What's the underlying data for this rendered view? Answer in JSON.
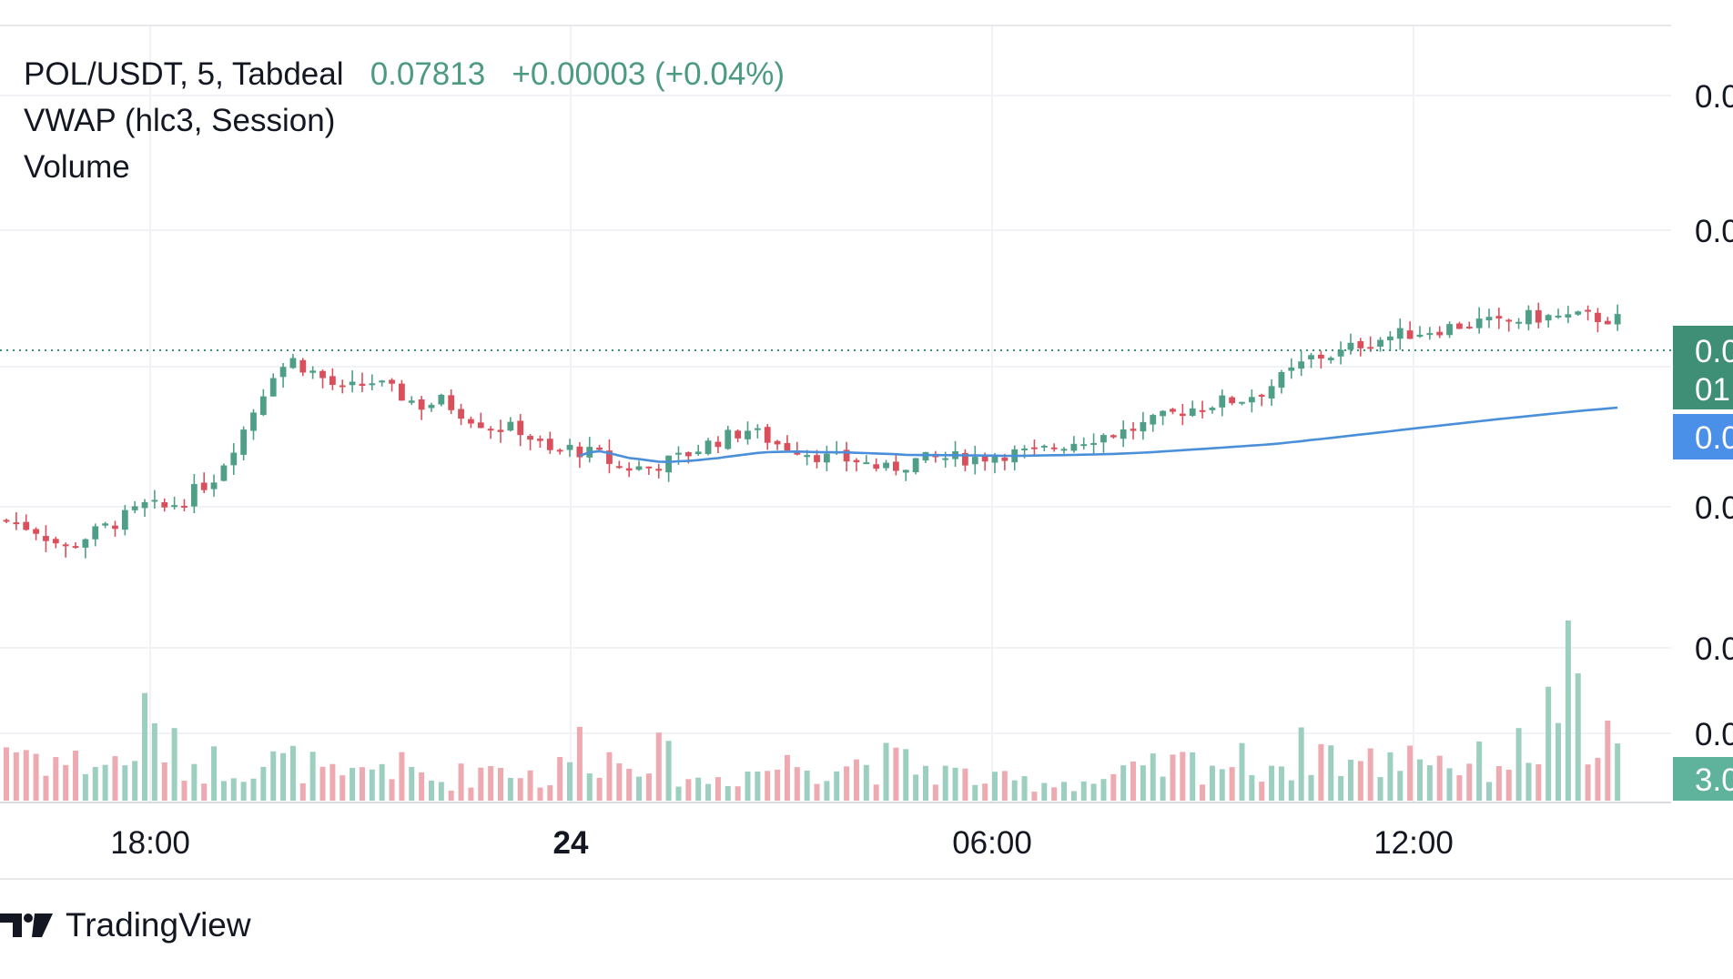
{
  "header": {
    "symbol": "POL/USDT, 5, Tabdeal",
    "last_price": "0.07813",
    "change": "+0.00003 (+0.04%)"
  },
  "indicators": {
    "vwap_label": "VWAP (hlc3, Session)",
    "volume_label": "Volume"
  },
  "footer": {
    "brand": "TradingView",
    "logo_icon": "tradingview-logo-icon"
  },
  "right_axis": {
    "tick_labels": [
      "0.0",
      "0.0",
      "0.0",
      "0.0",
      "0.0"
    ],
    "price_badge": [
      "0.0",
      "01"
    ],
    "vwap_badge": "0.0",
    "volume_badge": "3.0"
  },
  "colors": {
    "up": "#4f9f88",
    "down": "#d9505c",
    "vwap": "#4a8fd9",
    "price_badge": "#3f8f77",
    "vwap_badge": "#4a8fe8",
    "volume_badge": "#5fb39c",
    "grid": "#f0f2f5",
    "text": "#131722"
  },
  "chart_data": {
    "type": "candlestick",
    "interval": "5",
    "x_ticks": [
      "18:00",
      "24",
      "06:00",
      "12:00"
    ],
    "x_ticks_bold": [
      "24"
    ],
    "current_price_line": 0.07813,
    "note_axis": "Price axis labels are cropped; values are relative price units",
    "close_path": [
      [
        0,
        53.0
      ],
      [
        3,
        51.0
      ],
      [
        6,
        47.0
      ],
      [
        8,
        49.5
      ],
      [
        11,
        52.5
      ],
      [
        14,
        56.0
      ],
      [
        16,
        55.5
      ],
      [
        18,
        57.5
      ],
      [
        21,
        62.0
      ],
      [
        24,
        72.0
      ],
      [
        27,
        84.0
      ],
      [
        29,
        86.5
      ],
      [
        31,
        84.0
      ],
      [
        34,
        80.0
      ],
      [
        37,
        82.0
      ],
      [
        39,
        80.0
      ],
      [
        42,
        77.0
      ],
      [
        44,
        78.0
      ],
      [
        47,
        74.5
      ],
      [
        49,
        72.5
      ],
      [
        52,
        72.0
      ],
      [
        55,
        67.0
      ],
      [
        57,
        68.0
      ],
      [
        60,
        66.5
      ],
      [
        62,
        64.0
      ],
      [
        65,
        64.0
      ],
      [
        68,
        66.0
      ],
      [
        70,
        68.0
      ],
      [
        71,
        69.0
      ],
      [
        73,
        70.5
      ],
      [
        75,
        72.0
      ],
      [
        78,
        69.0
      ],
      [
        80,
        68.0
      ],
      [
        83,
        66.0
      ],
      [
        86,
        65.5
      ],
      [
        89,
        63.5
      ],
      [
        92,
        65.5
      ],
      [
        95,
        66.0
      ],
      [
        98,
        66.0
      ],
      [
        101,
        67.0
      ],
      [
        104,
        67.0
      ],
      [
        107,
        69.0
      ],
      [
        110,
        70.5
      ],
      [
        113,
        71.5
      ],
      [
        116,
        73.5
      ],
      [
        119,
        76.0
      ],
      [
        122,
        77.5
      ],
      [
        125,
        78.5
      ],
      [
        127,
        80.0
      ],
      [
        130,
        84.0
      ],
      [
        132,
        87.0
      ],
      [
        135,
        88.0
      ],
      [
        137,
        90.0
      ],
      [
        140,
        91.5
      ],
      [
        143,
        92.5
      ],
      [
        146,
        93.5
      ],
      [
        149,
        94.5
      ],
      [
        151,
        94.0
      ],
      [
        154,
        95.5
      ],
      [
        157,
        95.5
      ],
      [
        160,
        95.5
      ],
      [
        163,
        95.0
      ]
    ],
    "volume_path": [
      [
        0,
        3
      ],
      [
        6,
        2
      ],
      [
        12,
        2
      ],
      [
        14,
        4
      ],
      [
        18,
        2
      ],
      [
        24,
        2
      ],
      [
        30,
        2
      ],
      [
        34,
        1
      ],
      [
        38,
        2
      ],
      [
        44,
        1
      ],
      [
        50,
        2
      ],
      [
        55,
        1
      ],
      [
        58,
        3
      ],
      [
        62,
        2
      ],
      [
        64,
        3
      ],
      [
        67,
        2
      ],
      [
        70,
        1
      ],
      [
        80,
        2
      ],
      [
        90,
        2
      ],
      [
        100,
        1
      ],
      [
        110,
        1
      ],
      [
        120,
        2
      ],
      [
        130,
        2
      ],
      [
        132,
        3
      ],
      [
        136,
        2
      ],
      [
        140,
        2
      ],
      [
        142,
        3
      ],
      [
        146,
        2
      ],
      [
        150,
        2
      ],
      [
        155,
        3
      ],
      [
        158,
        7
      ],
      [
        160,
        2
      ],
      [
        163,
        2
      ]
    ]
  }
}
